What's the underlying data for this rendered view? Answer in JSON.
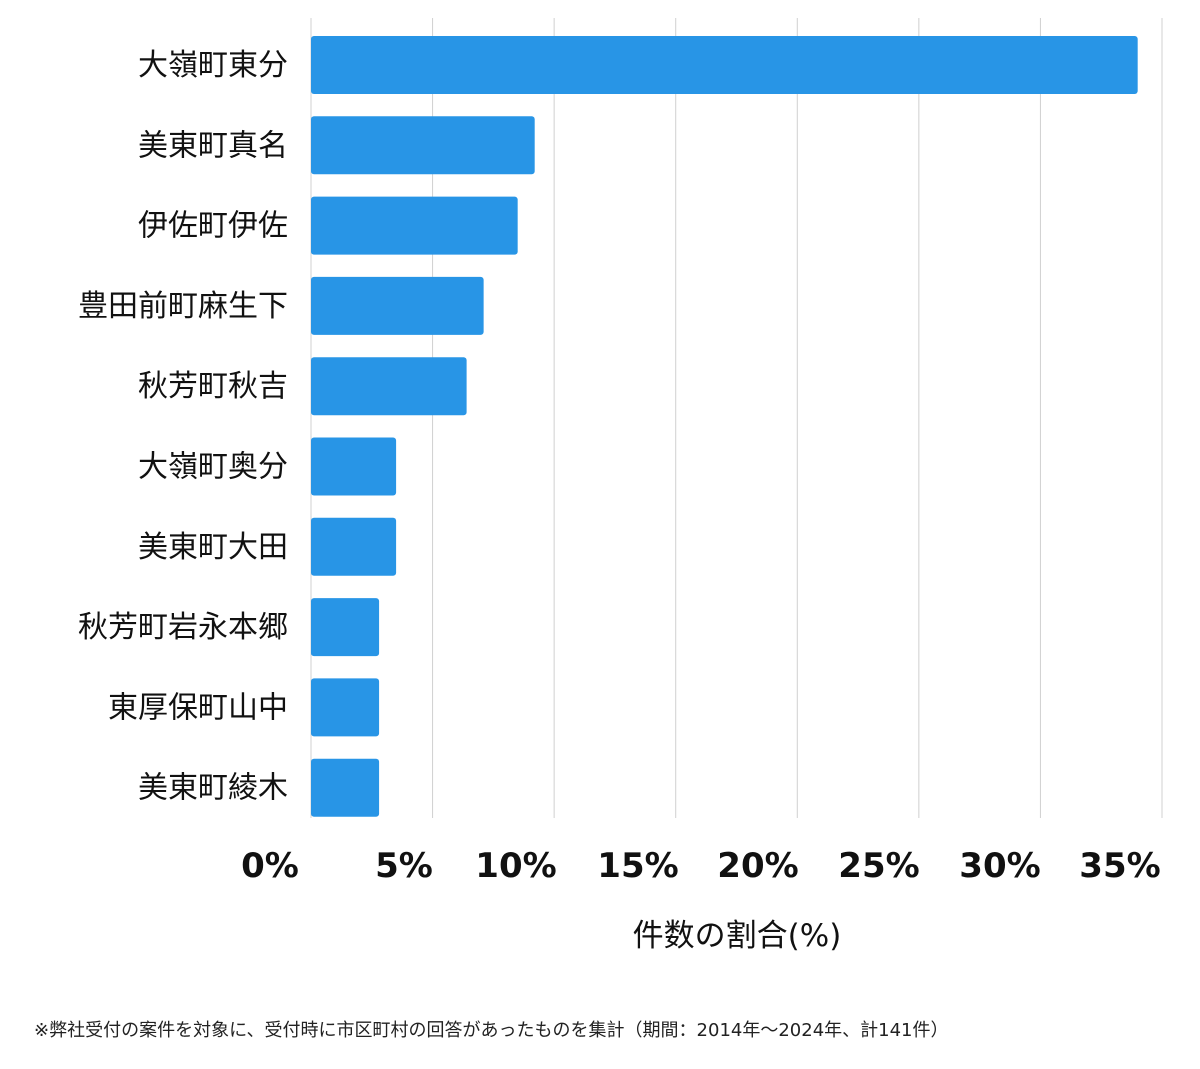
{
  "chart_data": {
    "type": "bar",
    "orientation": "horizontal",
    "categories": [
      "大嶺町東分",
      "美東町真名",
      "伊佐町伊佐",
      "豊田前町麻生下",
      "秋芳町秋吉",
      "大嶺町奥分",
      "美東町大田",
      "秋芳町岩永本郷",
      "東厚保町山中",
      "美東町綾木"
    ],
    "values": [
      34.0,
      9.2,
      8.5,
      7.1,
      6.4,
      3.5,
      3.5,
      2.8,
      2.8,
      2.8
    ],
    "xticks": [
      0,
      5,
      10,
      15,
      20,
      25,
      30,
      35
    ],
    "xtick_labels": [
      "0%",
      "5%",
      "10%",
      "15%",
      "20%",
      "25%",
      "30%",
      "35%"
    ],
    "xlim": [
      0,
      35
    ],
    "xlabel": "件数の割合(%)",
    "ylabel": "",
    "title": "",
    "grid": true,
    "bar_color": "#2895e6",
    "grid_color": "#d0d0d0"
  },
  "footnote": "※弊社受付の案件を対象に、受付時に市区町村の回答があったものを集計（期間：2014年〜2024年、計141件）"
}
